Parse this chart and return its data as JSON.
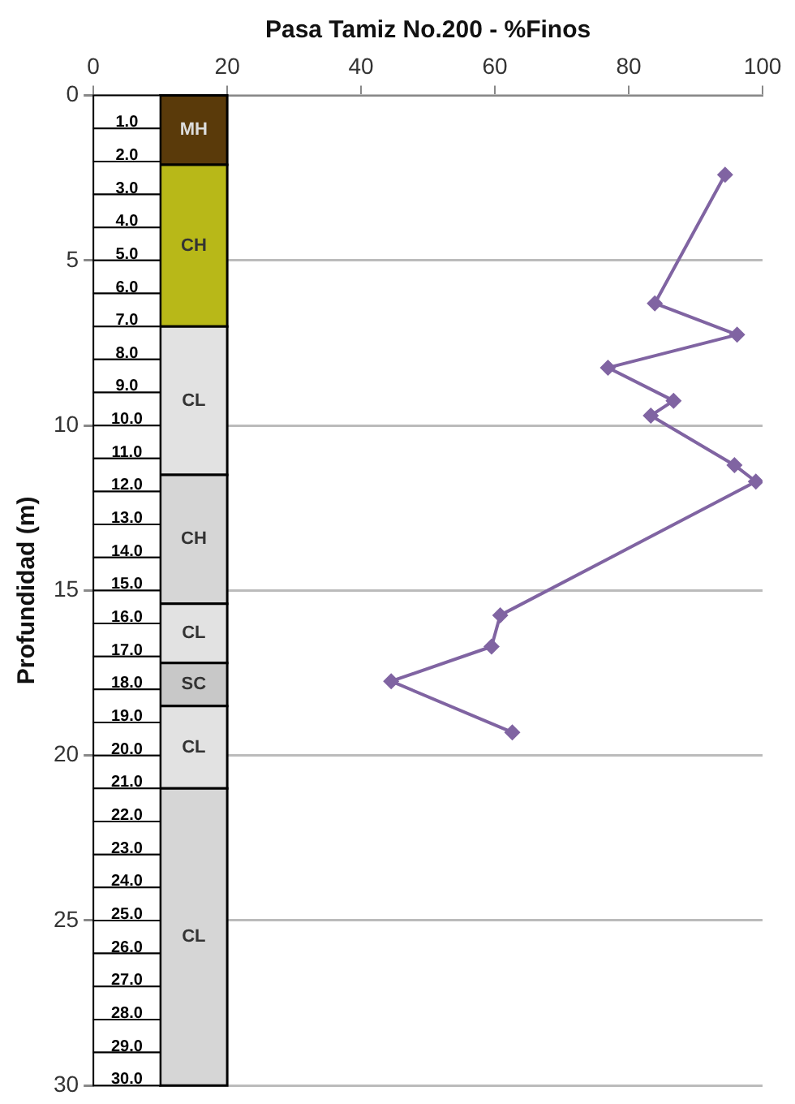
{
  "chart_data": {
    "type": "line",
    "xlabel": "Pasa Tamiz No.200 - %Finos",
    "ylabel": "Profundidad (m)",
    "xlim": [
      0,
      100
    ],
    "xticks": [
      0,
      20,
      40,
      60,
      80,
      100
    ],
    "ylim": [
      30,
      0
    ],
    "yticks": [
      0,
      5,
      10,
      15,
      20,
      25,
      30
    ],
    "grid": "y",
    "marker": "diamond",
    "line_style": "solid",
    "series": [
      {
        "color": "#8064a2",
        "x": [
          94.4,
          83.9,
          96.2,
          76.9,
          86.7,
          83.3,
          95.8,
          99.0,
          60.8,
          59.5,
          44.5,
          62.6
        ],
        "values": [
          2.4,
          6.3,
          7.25,
          8.25,
          9.25,
          9.7,
          11.2,
          11.7,
          15.75,
          16.7,
          17.75,
          19.3
        ]
      }
    ],
    "bands": [
      {
        "axis": "y",
        "from": 0,
        "to": 2.1,
        "label": "MH",
        "color": "#5a3a0a"
      },
      {
        "axis": "y",
        "from": 2.1,
        "to": 7,
        "label": "CH",
        "color": "#b8b818"
      },
      {
        "axis": "y",
        "from": 7,
        "to": 11.5,
        "label": "CL",
        "color": "#e2e2e2"
      },
      {
        "axis": "y",
        "from": 11.5,
        "to": 15.4,
        "label": "CH",
        "color": "#d6d6d6"
      },
      {
        "axis": "y",
        "from": 15.4,
        "to": 17.2,
        "label": "CL",
        "color": "#e2e2e2"
      },
      {
        "axis": "y",
        "from": 17.2,
        "to": 18.5,
        "label": "SC",
        "color": "#c8c8c8"
      },
      {
        "axis": "y",
        "from": 18.5,
        "to": 21,
        "label": "CL",
        "color": "#e2e2e2"
      },
      {
        "axis": "y",
        "from": 21,
        "to": 30,
        "label": "CL",
        "color": "#d6d6d6"
      }
    ],
    "y2lim": [
      30,
      0
    ],
    "y2ticks": [
      {
        "value": 1,
        "label": "1.0"
      },
      {
        "value": 2,
        "label": "2.0"
      },
      {
        "value": 3,
        "label": "3.0"
      },
      {
        "value": 4,
        "label": "4.0"
      },
      {
        "value": 5,
        "label": "5.0"
      },
      {
        "value": 6,
        "label": "6.0"
      },
      {
        "value": 7,
        "label": "7.0"
      },
      {
        "value": 8,
        "label": "8.0"
      },
      {
        "value": 9,
        "label": "9.0"
      },
      {
        "value": 10,
        "label": "10.0"
      },
      {
        "value": 11,
        "label": "11.0"
      },
      {
        "value": 12,
        "label": "12.0"
      },
      {
        "value": 13,
        "label": "13.0"
      },
      {
        "value": 14,
        "label": "14.0"
      },
      {
        "value": 15,
        "label": "15.0"
      },
      {
        "value": 16,
        "label": "16.0"
      },
      {
        "value": 17,
        "label": "17.0"
      },
      {
        "value": 18,
        "label": "18.0"
      },
      {
        "value": 19,
        "label": "19.0"
      },
      {
        "value": 20,
        "label": "20.0"
      },
      {
        "value": 21,
        "label": "21.0"
      },
      {
        "value": 22,
        "label": "22.0"
      },
      {
        "value": 23,
        "label": "23.0"
      },
      {
        "value": 24,
        "label": "24.0"
      },
      {
        "value": 25,
        "label": "25.0"
      },
      {
        "value": 26,
        "label": "26.0"
      },
      {
        "value": 27,
        "label": "27.0"
      },
      {
        "value": 28,
        "label": "28.0"
      },
      {
        "value": 29,
        "label": "29.0"
      },
      {
        "value": 30,
        "label": "30.0"
      }
    ],
    "tick_labels": "xy"
  }
}
